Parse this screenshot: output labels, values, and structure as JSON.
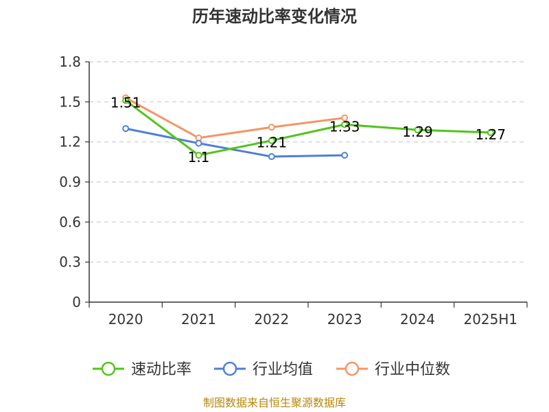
{
  "page": {
    "title": "历年速动比率变化情况",
    "source": "制图数据来自恒生聚源数据库"
  },
  "icons": [],
  "chart_data": {
    "type": "line",
    "title": "历年速动比率变化情况",
    "xlabel": "",
    "ylabel": "",
    "categories": [
      "2020",
      "2021",
      "2022",
      "2023",
      "2024",
      "2025H1"
    ],
    "ylim": [
      0,
      1.8
    ],
    "yticks": [
      "0",
      "0.3",
      "0.6",
      "0.9",
      "1.2",
      "1.5",
      "1.8"
    ],
    "grid": true,
    "legend_position": "bottom",
    "series": [
      {
        "name": "速动比率",
        "color": "#52c41a",
        "values": [
          1.51,
          1.1,
          1.21,
          1.33,
          1.29,
          1.27
        ],
        "labels": [
          "1.51",
          "1.1",
          "1.21",
          "1.33",
          "1.29",
          "1.27"
        ]
      },
      {
        "name": "行业均值",
        "color": "#4e7fd8",
        "values": [
          1.3,
          1.19,
          1.09,
          1.1,
          null,
          null
        ],
        "labels": []
      },
      {
        "name": "行业中位数",
        "color": "#f59563",
        "values": [
          1.53,
          1.23,
          1.31,
          1.38,
          null,
          null
        ],
        "labels": []
      }
    ]
  }
}
